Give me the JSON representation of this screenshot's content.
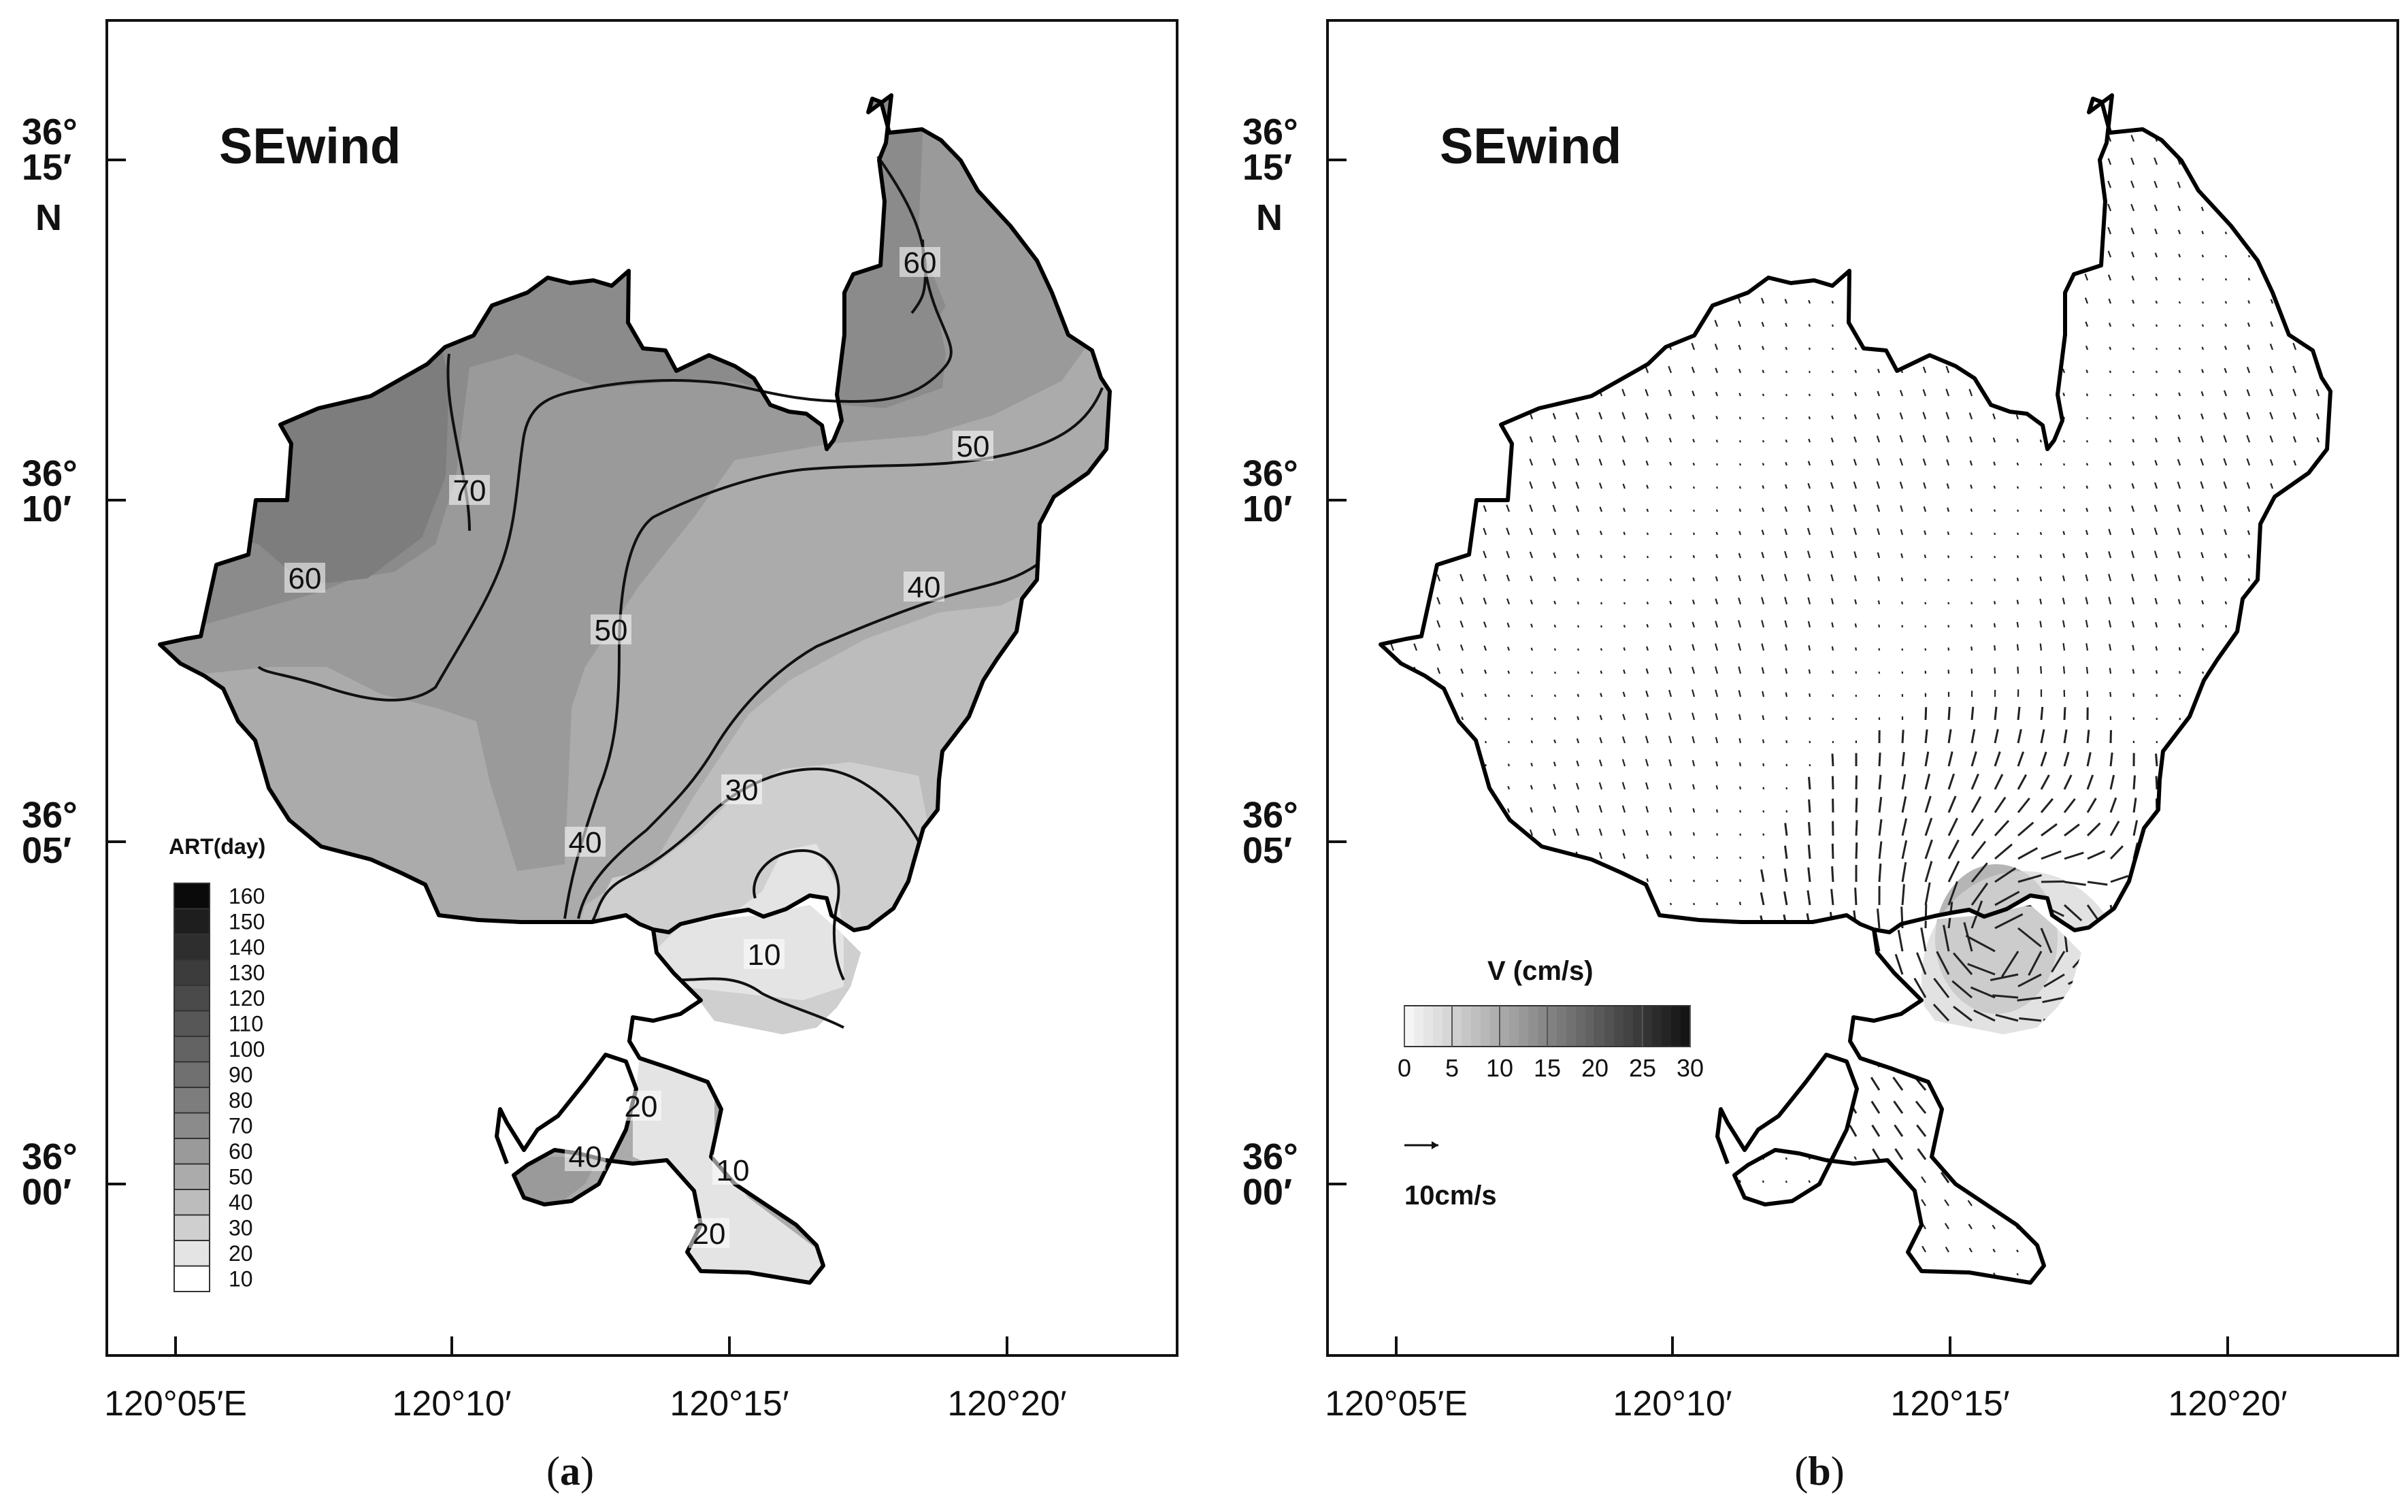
{
  "panels": [
    {
      "id": "a",
      "title": "SEwind",
      "caption_letter": "a",
      "lat_labels": [
        {
          "deg": "36°",
          "min": "15′",
          "hemi": "N"
        },
        {
          "deg": "36°",
          "min": "10′",
          "hemi": ""
        },
        {
          "deg": "36°",
          "min": "05′",
          "hemi": ""
        },
        {
          "deg": "36°",
          "min": "00′",
          "hemi": ""
        }
      ],
      "lon_labels": [
        "120°05′E",
        "120°10′",
        "120°15′",
        "120°20′"
      ],
      "legend": {
        "title": "ART(day)",
        "levels": [
          "160",
          "150",
          "140",
          "130",
          "120",
          "110",
          "100",
          "90",
          "80",
          "70",
          "60",
          "50",
          "40",
          "30",
          "20",
          "10"
        ],
        "colors": [
          "#0a0a0a",
          "#1e1e1e",
          "#2e2e2e",
          "#3c3c3c",
          "#4a4a4a",
          "#575757",
          "#636363",
          "#707070",
          "#7d7d7d",
          "#8b8b8b",
          "#9a9a9a",
          "#ababab",
          "#bcbcbc",
          "#cfcfcf",
          "#e4e4e4",
          "#ffffff"
        ]
      },
      "contour_labels": [
        "60",
        "50",
        "70",
        "60",
        "50",
        "40",
        "30",
        "40",
        "10",
        "20",
        "40",
        "10",
        "20"
      ]
    },
    {
      "id": "b",
      "title": "SEwind",
      "caption_letter": "b",
      "lat_labels": [
        {
          "deg": "36°",
          "min": "15′",
          "hemi": "N"
        },
        {
          "deg": "36°",
          "min": "10′",
          "hemi": ""
        },
        {
          "deg": "36°",
          "min": "05′",
          "hemi": ""
        },
        {
          "deg": "36°",
          "min": "00′",
          "hemi": ""
        }
      ],
      "lon_labels": [
        "120°05′E",
        "120°10′",
        "120°15′",
        "120°20′"
      ],
      "velocity_legend": {
        "title": "V (cm/s)",
        "ticks": [
          "0",
          "5",
          "10",
          "15",
          "20",
          "25",
          "30"
        ],
        "reference": "10cm/s"
      }
    }
  ]
}
